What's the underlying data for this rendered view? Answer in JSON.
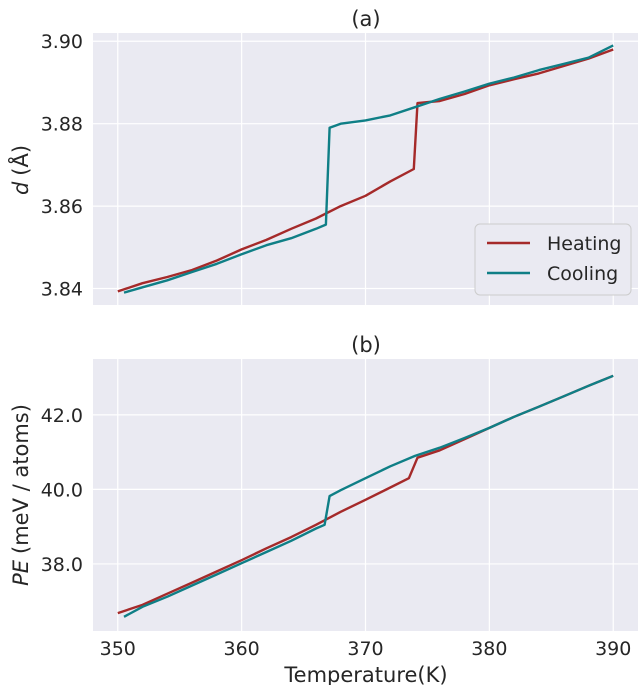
{
  "colors": {
    "heating": "#a52a2a",
    "cooling": "#0f7f86",
    "panel_bg": "#eaeaf2",
    "grid": "#ffffff"
  },
  "chart_data": [
    {
      "type": "line",
      "title": "(a)",
      "ylabel_var": "d",
      "ylabel_unit": "(Å)",
      "xlim": [
        348,
        392
      ],
      "ylim": [
        3.836,
        3.902
      ],
      "x_ticks": [
        350,
        360,
        370,
        380,
        390
      ],
      "y_ticks": [
        3.84,
        3.86,
        3.88,
        3.9
      ],
      "y_tick_labels": [
        "3.84",
        "3.86",
        "3.88",
        "3.90"
      ],
      "grid": true,
      "legend": {
        "placement": "lower-right"
      },
      "series": [
        {
          "name": "Heating",
          "color": "#a52a2a",
          "x": [
            350,
            352,
            354,
            356,
            358,
            360,
            362,
            364,
            366,
            368,
            370,
            372,
            373.9,
            374.2,
            376,
            378,
            380,
            382,
            384,
            386,
            388,
            390
          ],
          "y": [
            3.8393,
            3.8413,
            3.8428,
            3.8445,
            3.8468,
            3.8495,
            3.8518,
            3.8545,
            3.857,
            3.86,
            3.8625,
            3.866,
            3.869,
            3.885,
            3.8855,
            3.8872,
            3.8893,
            3.8908,
            3.8922,
            3.894,
            3.8958,
            3.898
          ]
        },
        {
          "name": "Cooling",
          "color": "#0f7f86",
          "x": [
            350.5,
            352,
            354,
            356,
            358,
            360,
            362,
            364,
            366,
            366.8,
            367.1,
            368,
            370,
            372,
            374,
            376,
            378,
            380,
            382,
            384,
            386,
            388,
            390
          ],
          "y": [
            3.839,
            3.8403,
            3.842,
            3.844,
            3.846,
            3.8483,
            3.8505,
            3.8522,
            3.8545,
            3.8555,
            3.879,
            3.88,
            3.8808,
            3.882,
            3.884,
            3.886,
            3.8878,
            3.8897,
            3.8912,
            3.893,
            3.8945,
            3.896,
            3.899
          ]
        }
      ]
    },
    {
      "type": "line",
      "title": "(b)",
      "ylabel_var": "PE",
      "ylabel_unit": "(meV / atoms)",
      "xlabel": "Temperature(K)",
      "xlim": [
        348,
        392
      ],
      "ylim": [
        36.2,
        43.5
      ],
      "x_ticks": [
        350,
        360,
        370,
        380,
        390
      ],
      "y_ticks": [
        38.0,
        40.0,
        42.0
      ],
      "y_tick_labels": [
        "38.0",
        "40.0",
        "42.0"
      ],
      "grid": true,
      "series": [
        {
          "name": "Heating",
          "color": "#a52a2a",
          "x": [
            350,
            352,
            354,
            356,
            358,
            360,
            362,
            364,
            366,
            368,
            370,
            372,
            373.5,
            374.2,
            376,
            378,
            380,
            382,
            384,
            386,
            388,
            390
          ],
          "y": [
            36.68,
            36.9,
            37.2,
            37.5,
            37.8,
            38.1,
            38.42,
            38.72,
            39.05,
            39.4,
            39.72,
            40.05,
            40.3,
            40.85,
            41.05,
            41.35,
            41.65,
            41.95,
            42.22,
            42.5,
            42.78,
            43.05
          ]
        },
        {
          "name": "Cooling",
          "color": "#0f7f86",
          "x": [
            350.5,
            352,
            354,
            356,
            358,
            360,
            362,
            364,
            366,
            366.7,
            367.1,
            368,
            370,
            372,
            374,
            376,
            378,
            380,
            382,
            384,
            386,
            388,
            390
          ],
          "y": [
            36.58,
            36.85,
            37.12,
            37.42,
            37.72,
            38.02,
            38.32,
            38.62,
            38.95,
            39.05,
            39.82,
            39.98,
            40.3,
            40.62,
            40.9,
            41.12,
            41.38,
            41.65,
            41.95,
            42.22,
            42.5,
            42.78,
            43.05
          ]
        }
      ]
    }
  ]
}
